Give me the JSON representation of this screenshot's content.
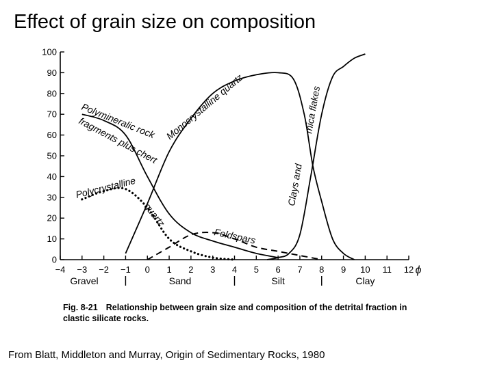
{
  "slide": {
    "title": "Effect of grain size on composition",
    "source": "From Blatt, Middleton and Murray, Origin of Sedimentary Rocks, 1980"
  },
  "figure": {
    "number": "Fig. 8-21",
    "caption": "Relationship between grain size and composition of the detrital fraction in clastic silicate rocks."
  },
  "chart_data": {
    "type": "line",
    "xlabel": "ϕ",
    "ylabel": "",
    "xlim": [
      -4,
      12
    ],
    "ylim": [
      0,
      100
    ],
    "x_ticks": [
      -4,
      -3,
      -2,
      -1,
      0,
      1,
      2,
      3,
      4,
      5,
      6,
      7,
      8,
      9,
      10,
      11,
      12
    ],
    "y_ticks": [
      0,
      10,
      20,
      30,
      40,
      50,
      60,
      70,
      80,
      90,
      100
    ],
    "grain_classes": [
      {
        "label": "Gravel",
        "x": -2.9
      },
      {
        "label": "Sand",
        "x": 1.5
      },
      {
        "label": "Silt",
        "x": 6.0
      },
      {
        "label": "Clay",
        "x": 10.0
      }
    ],
    "class_boundaries": [
      -1,
      4,
      8
    ],
    "series": [
      {
        "name": "Polymineralic rock fragments plus chert",
        "label_lines": [
          "Polymineralic rock",
          "fragments plus chert"
        ],
        "style": "solid",
        "x": [
          -3,
          -2,
          -1,
          0,
          1,
          2,
          3,
          4,
          5,
          6
        ],
        "y": [
          70,
          67,
          60,
          40,
          22,
          13,
          9,
          6,
          3,
          1
        ]
      },
      {
        "name": "Monocrystalline quartz",
        "label_lines": [
          "Monocrystalline quartz"
        ],
        "style": "solid",
        "x": [
          -1,
          0,
          1,
          2,
          3,
          4,
          5,
          6,
          6.7,
          7.2,
          7.6,
          8,
          8.5,
          9,
          9.5
        ],
        "y": [
          3,
          27,
          52,
          68,
          80,
          86,
          89,
          90,
          87,
          70,
          45,
          28,
          10,
          3,
          0
        ]
      },
      {
        "name": "Clays and mica flakes",
        "label_lines": [
          "Clays and",
          "mica flakes"
        ],
        "style": "solid",
        "x": [
          5.5,
          6,
          6.5,
          7,
          7.5,
          8,
          8.5,
          9,
          9.5,
          10
        ],
        "y": [
          0,
          1,
          3,
          12,
          40,
          70,
          88,
          93,
          97,
          99
        ]
      },
      {
        "name": "Polycrystalline quartz",
        "label_lines": [
          "Polycrystalline",
          "quartz"
        ],
        "style": "dotted",
        "x": [
          -3,
          -2,
          -1,
          0,
          1,
          2,
          3,
          4
        ],
        "y": [
          29,
          33,
          34,
          25,
          10,
          4,
          1,
          0
        ]
      },
      {
        "name": "Feldspars",
        "label_lines": [
          "Feldspars"
        ],
        "style": "dashed",
        "x": [
          0,
          1,
          2,
          3,
          4,
          5,
          6,
          7,
          8
        ],
        "y": [
          0,
          6,
          12,
          13,
          10,
          6,
          4,
          2,
          0
        ]
      }
    ]
  }
}
